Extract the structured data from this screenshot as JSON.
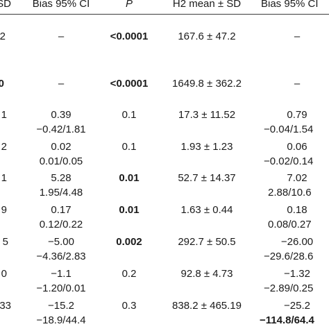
{
  "header": {
    "col0": "SD",
    "col1": "Bias 95% CI",
    "col2": "P",
    "col3": "H2 mean ± SD",
    "col4": "Bias 95% CI"
  },
  "rows": [
    {
      "c0": "2",
      "c1a": "–",
      "c1b": "",
      "c2": "<0.0001",
      "c2_bold": true,
      "c3": "167.6 ± 47.2",
      "c4a": "–",
      "c4b": "",
      "c4a_bold": false,
      "c4b_bold": false
    },
    {
      "c0": "0",
      "c0_bold": true,
      "c1a": "–",
      "c1b": "",
      "c2": "<0.0001",
      "c2_bold": true,
      "c3": "1649.8 ± 362.2",
      "c4a": "–",
      "c4b": "",
      "c4a_bold": false,
      "c4b_bold": false
    },
    {
      "c0": "1",
      "c1a": "0.39",
      "c1b": "−0.42/1.81",
      "c2": "0.1",
      "c2_bold": false,
      "c3": "17.3 ± 11.52",
      "c4a": "0.79",
      "c4b": "−0.04/1.54",
      "c4a_bold": false,
      "c4b_bold": false
    },
    {
      "c0": "2",
      "c1a": "0.02",
      "c1b": "0.01/0.05",
      "c2": "0.1",
      "c2_bold": false,
      "c3": "1.93 ± 1.23",
      "c4a": "0.06",
      "c4b": "−0.02/0.14",
      "c4a_bold": false,
      "c4b_bold": false
    },
    {
      "c0": "1",
      "c1a": "5.28",
      "c1b": "1.95/4.48",
      "c2": "0.01",
      "c2_bold": true,
      "c3": "52.7 ± 14.37",
      "c4a": "7.02",
      "c4b": "2.88/10.6",
      "c4a_bold": false,
      "c4b_bold": false
    },
    {
      "c0": "9",
      "c1a": "0.17",
      "c1b": "0.12/0.22",
      "c2": "0.01",
      "c2_bold": true,
      "c3": "1.63 ± 0.44",
      "c4a": "0.18",
      "c4b": "0.08/0.27",
      "c4a_bold": false,
      "c4b_bold": false
    },
    {
      "c0": "5",
      "c1a": "−5.00",
      "c1b": "−4.36/2.83",
      "c2": "0.002",
      "c2_bold": true,
      "c3": "292.7 ± 50.5",
      "c4a": "−26.00",
      "c4b": "−29.6/28.6",
      "c4a_bold": false,
      "c4b_bold": false
    },
    {
      "c0": "0",
      "c1a": "−1.1",
      "c1b": "−1.20/0.01",
      "c2": "0.2",
      "c2_bold": false,
      "c3": "92.8 ± 4.73",
      "c4a": "−1.32",
      "c4b": "−2.89/0.25",
      "c4a_bold": false,
      "c4b_bold": false
    },
    {
      "c0": "33",
      "c1a": "−15.2",
      "c1b": "−18.9/44.4",
      "c2": "0.3",
      "c2_bold": false,
      "c3": "838.2 ± 465.19",
      "c4a": "−25.2",
      "c4b": "−114.8/64.4",
      "c4a_bold": false,
      "c4b_bold": true
    }
  ]
}
